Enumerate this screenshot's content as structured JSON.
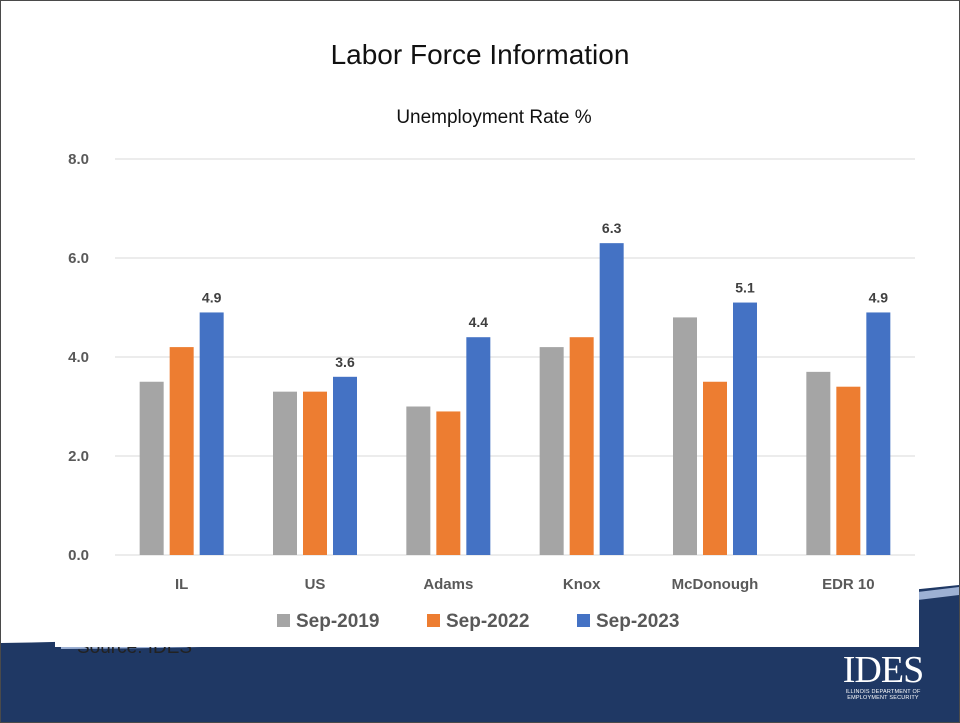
{
  "slide": {
    "title": "Labor Force Information",
    "source_text": "Source: IDES",
    "logo_text": "IDES",
    "logo_subtext": "ILLINOIS DEPARTMENT OF EMPLOYMENT SECURITY"
  },
  "colors": {
    "band_dark": "#1f3864",
    "band_mid": "#2e5597",
    "band_light": "#b4c7e7"
  },
  "chart_data": {
    "type": "bar",
    "title": "Unemployment Rate %",
    "xlabel": "",
    "ylabel": "",
    "categories": [
      "IL",
      "US",
      "Adams",
      "Knox",
      "McDonough",
      "EDR 10"
    ],
    "series": [
      {
        "name": "Sep-2019",
        "color": "#a5a5a5",
        "values": [
          3.5,
          3.3,
          3.0,
          4.2,
          4.8,
          3.7
        ]
      },
      {
        "name": "Sep-2022",
        "color": "#ed7d31",
        "values": [
          4.2,
          3.3,
          2.9,
          4.4,
          3.5,
          3.4
        ]
      },
      {
        "name": "Sep-2023",
        "color": "#4472c4",
        "values": [
          4.9,
          3.6,
          4.4,
          6.3,
          5.1,
          4.9
        ]
      }
    ],
    "data_labels_series": "Sep-2023",
    "ylim": [
      0,
      8
    ],
    "yticks": [
      "0.0",
      "2.0",
      "4.0",
      "6.0",
      "8.0"
    ],
    "grid": true,
    "legend_position": "bottom"
  }
}
